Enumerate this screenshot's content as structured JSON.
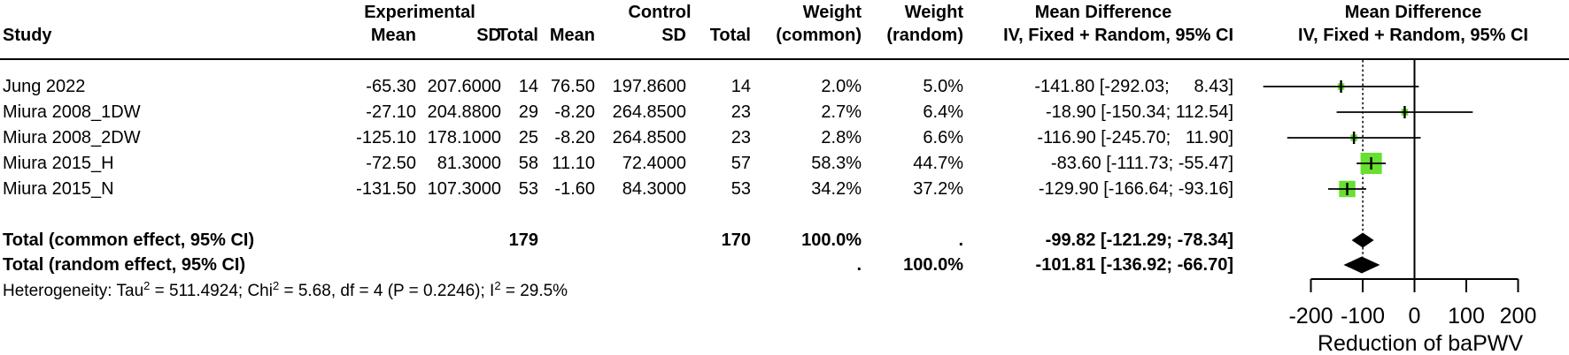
{
  "table": {
    "group_headers": {
      "experimental": "Experimental",
      "control": "Control",
      "weight_common": "Weight",
      "weight_random": "Weight",
      "md_text": "Mean Difference",
      "md_plot": "Mean Difference"
    },
    "col_headers": {
      "study": "Study",
      "mean_e": "Mean",
      "sd_e": "SD",
      "total_e": "Total",
      "mean_c": "Mean",
      "sd_c": "SD",
      "total_c": "Total",
      "w_common": "(common)",
      "w_random": "(random)",
      "iv_text": "IV, Fixed + Random, 95% CI",
      "iv_plot": "IV, Fixed + Random, 95% CI"
    },
    "rows": [
      {
        "study": "Jung 2022",
        "mean_e": "-65.30",
        "sd_e": "207.6000",
        "total_e": "14",
        "mean_c": "76.50",
        "sd_c": "197.8600",
        "total_c": "14",
        "w_common": "2.0%",
        "w_random": "5.0%",
        "md": "-141.80 [-292.03;   8.43]"
      },
      {
        "study": "Miura 2008_1DW",
        "mean_e": "-27.10",
        "sd_e": "204.8800",
        "total_e": "29",
        "mean_c": "-8.20",
        "sd_c": "264.8500",
        "total_c": "23",
        "w_common": "2.7%",
        "w_random": "6.4%",
        "md": " -18.90 [-150.34; 112.54]"
      },
      {
        "study": "Miura 2008_2DW",
        "mean_e": "-125.10",
        "sd_e": "178.1000",
        "total_e": "25",
        "mean_c": "-8.20",
        "sd_c": "264.8500",
        "total_c": "23",
        "w_common": "2.8%",
        "w_random": "6.6%",
        "md": "-116.90 [-245.70;  11.90]"
      },
      {
        "study": "Miura 2015_H",
        "mean_e": "-72.50",
        "sd_e": "81.3000",
        "total_e": "58",
        "mean_c": "11.10",
        "sd_c": "72.4000",
        "total_c": "57",
        "w_common": "58.3%",
        "w_random": "44.7%",
        "md": " -83.60 [-111.73; -55.47]"
      },
      {
        "study": "Miura 2015_N",
        "mean_e": "-131.50",
        "sd_e": "107.3000",
        "total_e": "53",
        "mean_c": "-1.60",
        "sd_c": "84.3000",
        "total_c": "53",
        "w_common": "34.2%",
        "w_random": "37.2%",
        "md": "-129.90 [-166.64; -93.16]"
      }
    ],
    "total_common": {
      "label": "Total (common effect, 95% CI)",
      "total_e": "179",
      "total_c": "170",
      "w_common": "100.0%",
      "w_random": ".",
      "md": " -99.82 [-121.29; -78.34]"
    },
    "total_random": {
      "label": "Total (random effect, 95% CI)",
      "w_common": ".",
      "w_random": "100.0%",
      "md": "-101.81 [-136.92; -66.70]"
    },
    "heterogeneity": {
      "p1": "Heterogeneity: Tau",
      "s1": "2",
      "p2": " = 511.4924; Chi",
      "s2": "2",
      "p3": " = 5.68, df = 4 (P = 0.2246); I",
      "s3": "2",
      "p4": " = 29.5%"
    }
  },
  "axis": {
    "tick_labels": [
      "-200",
      "-100",
      "0",
      "100",
      "200"
    ],
    "label": "Reduction of baPWV"
  },
  "chart_data": {
    "type": "scatter",
    "subtype": "forest_plot_mean_difference",
    "title": "Mean Difference, IV, Fixed + Random, 95% CI",
    "xlabel": "Reduction of baPWV",
    "xticks": [
      -200,
      -100,
      0,
      100,
      200
    ],
    "xlim": [
      -300,
      260
    ],
    "reference_line": 0,
    "pooled_dashed_line": -99.82,
    "studies": [
      {
        "name": "Jung 2022",
        "md": -141.8,
        "ci_low": -292.03,
        "ci_high": 8.43,
        "weight_common_pct": 2.0,
        "weight_random_pct": 5.0
      },
      {
        "name": "Miura 2008_1DW",
        "md": -18.9,
        "ci_low": -150.34,
        "ci_high": 112.54,
        "weight_common_pct": 2.7,
        "weight_random_pct": 6.4
      },
      {
        "name": "Miura 2008_2DW",
        "md": -116.9,
        "ci_low": -245.7,
        "ci_high": 11.9,
        "weight_common_pct": 2.8,
        "weight_random_pct": 6.6
      },
      {
        "name": "Miura 2015_H",
        "md": -83.6,
        "ci_low": -111.73,
        "ci_high": -55.47,
        "weight_common_pct": 58.3,
        "weight_random_pct": 44.7
      },
      {
        "name": "Miura 2015_N",
        "md": -129.9,
        "ci_low": -166.64,
        "ci_high": -93.16,
        "weight_common_pct": 34.2,
        "weight_random_pct": 37.2
      }
    ],
    "pooled": [
      {
        "name": "Total (common effect, 95% CI)",
        "md": -99.82,
        "ci_low": -121.29,
        "ci_high": -78.34,
        "weight_pct": 100.0
      },
      {
        "name": "Total (random effect, 95% CI)",
        "md": -101.81,
        "ci_low": -136.92,
        "ci_high": -66.7,
        "weight_pct": 100.0
      }
    ],
    "heterogeneity": {
      "tau2": 511.4924,
      "chi2": 5.68,
      "df": 4,
      "p": 0.2246,
      "i2_pct": 29.5
    },
    "colors": {
      "square": "#68E02F",
      "diamond": "#000000",
      "lines": "#000000"
    }
  }
}
